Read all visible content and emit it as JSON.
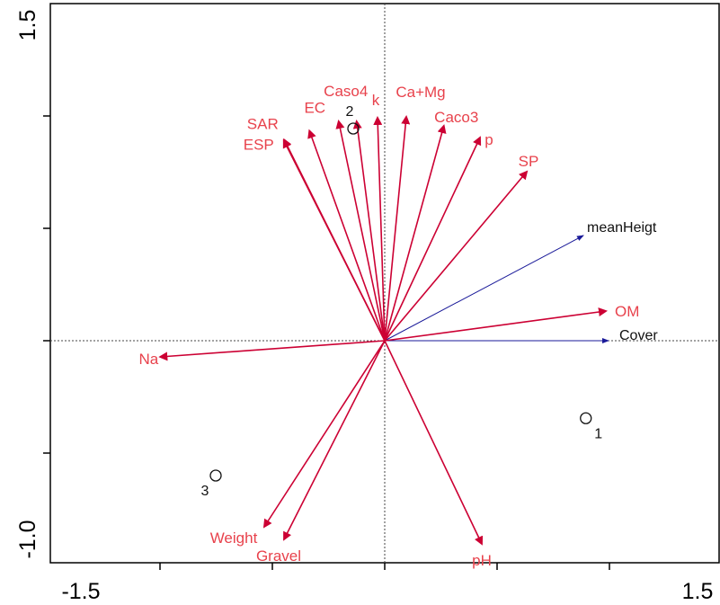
{
  "chart_data": {
    "type": "scatter",
    "subtype": "biplot",
    "xlim": [
      -1.5,
      1.5
    ],
    "ylim": [
      -1.0,
      1.5
    ],
    "x_tick_labels": [
      "-1.5",
      "1.5"
    ],
    "y_tick_labels": [
      "-1.0",
      "1.5"
    ],
    "grid": false,
    "env_color": "#e8424c",
    "arrow_color": "#cc0033",
    "species_color": "#1a1a99",
    "env_vectors": [
      {
        "label": "SAR",
        "x": -0.447,
        "y": 0.894
      },
      {
        "label": "ESP",
        "x": -0.449,
        "y": 0.891
      },
      {
        "label": "EC",
        "x": -0.335,
        "y": 0.934
      },
      {
        "label": "Caso4",
        "x": -0.205,
        "y": 0.976
      },
      {
        "label": "2",
        "x": -0.125,
        "y": 0.976
      },
      {
        "label": "k",
        "x": -0.032,
        "y": 0.992
      },
      {
        "label": "Ca+Mg",
        "x": 0.096,
        "y": 0.996
      },
      {
        "label": "Caco3",
        "x": 0.263,
        "y": 0.956
      },
      {
        "label": "p",
        "x": 0.424,
        "y": 0.904
      },
      {
        "label": "SP",
        "x": 0.632,
        "y": 0.752
      },
      {
        "label": "OM",
        "x": 0.984,
        "y": 0.132
      },
      {
        "label": "Na",
        "x": -0.999,
        "y": -0.072
      },
      {
        "label": "Weight",
        "x": -0.536,
        "y": -0.828
      },
      {
        "label": "Gravel",
        "x": -0.448,
        "y": -0.884
      },
      {
        "label": "pH",
        "x": 0.432,
        "y": -0.904
      }
    ],
    "species_vectors": [
      {
        "label": "meanHeigt",
        "x": 0.884,
        "y": 0.468
      },
      {
        "label": "Cover",
        "x": 0.996,
        "y": 0.0
      }
    ],
    "sites": [
      {
        "label": "1",
        "x": 0.895,
        "y": -0.345
      },
      {
        "label": "2",
        "x": -0.14,
        "y": 0.944
      },
      {
        "label": "3",
        "x": -0.752,
        "y": -0.6
      }
    ]
  }
}
